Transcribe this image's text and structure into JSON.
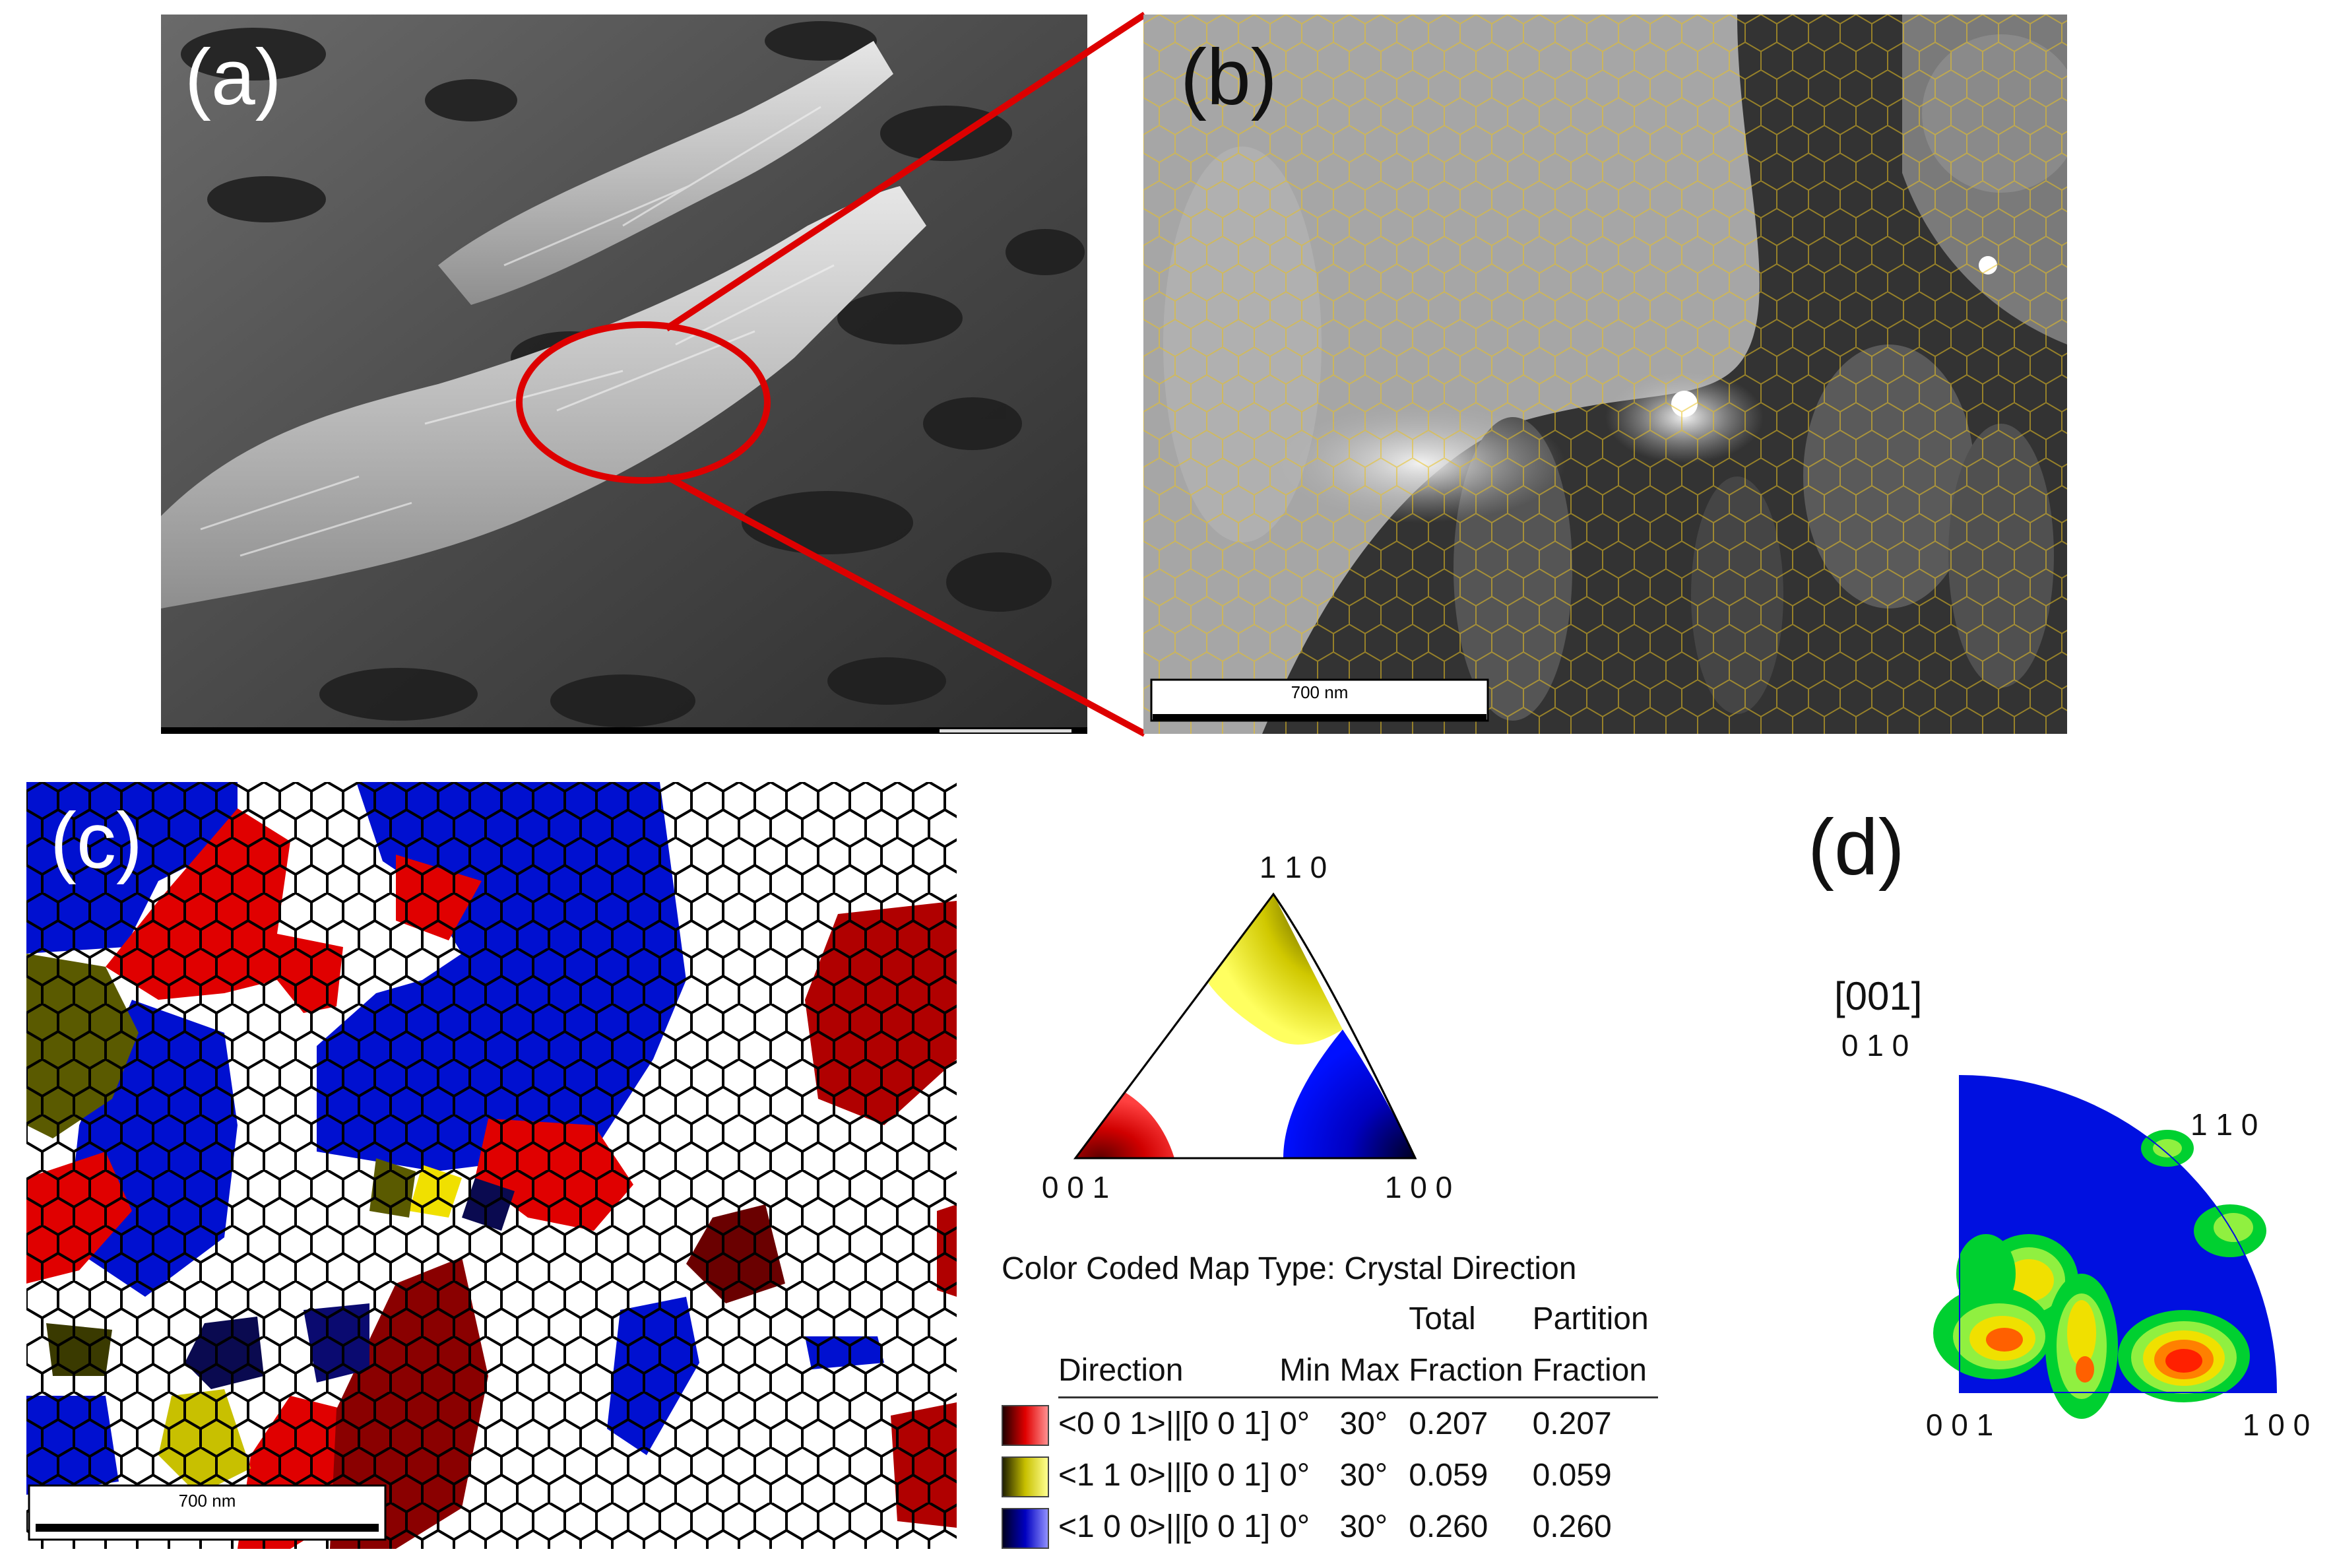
{
  "panels": {
    "a": {
      "label": "(a)"
    },
    "b": {
      "label": "(b)",
      "scalebar": "700 nm"
    },
    "c": {
      "label": "(c)",
      "scalebar": "700 nm"
    },
    "d": {
      "label": "(d)",
      "direction": "[001]",
      "corner_top": "0 1 0",
      "corner_mid": "1 1 0",
      "corner_left": "0 0 1",
      "corner_right": "1 0 0"
    }
  },
  "ipf_key": {
    "top": "1 1 0",
    "left": "0 0 1",
    "right": "1 0 0"
  },
  "legend": {
    "title": "Color Coded Map Type: Crystal Direction",
    "headers": {
      "direction": "Direction",
      "min": "Min",
      "max": "Max",
      "total_1": "Total",
      "total_2": "Fraction",
      "partition_1": "Partition",
      "partition_2": "Fraction"
    },
    "rows": [
      {
        "direction": "<0 0 1>||[0 0 1]",
        "min": "0°",
        "max": "30°",
        "total": "0.207",
        "partition": "0.207",
        "color": "#c00000"
      },
      {
        "direction": "<1 1 0>||[0 0 1]",
        "min": "0°",
        "max": "30°",
        "total": "0.059",
        "partition": "0.059",
        "color": "#c8c000"
      },
      {
        "direction": "<1 0 0>||[0 0 1]",
        "min": "0°",
        "max": "30°",
        "total": "0.260",
        "partition": "0.260",
        "color": "#0000c0"
      }
    ]
  },
  "colors": {
    "red": "#e00000",
    "yellow": "#f0e000",
    "blue": "#0010d0",
    "dark_red": "#8a0000",
    "olive": "#5a5a00",
    "navy": "#0a0a50",
    "zoom_lines": "#dd0000",
    "grain_boundary": "#e8c020"
  }
}
